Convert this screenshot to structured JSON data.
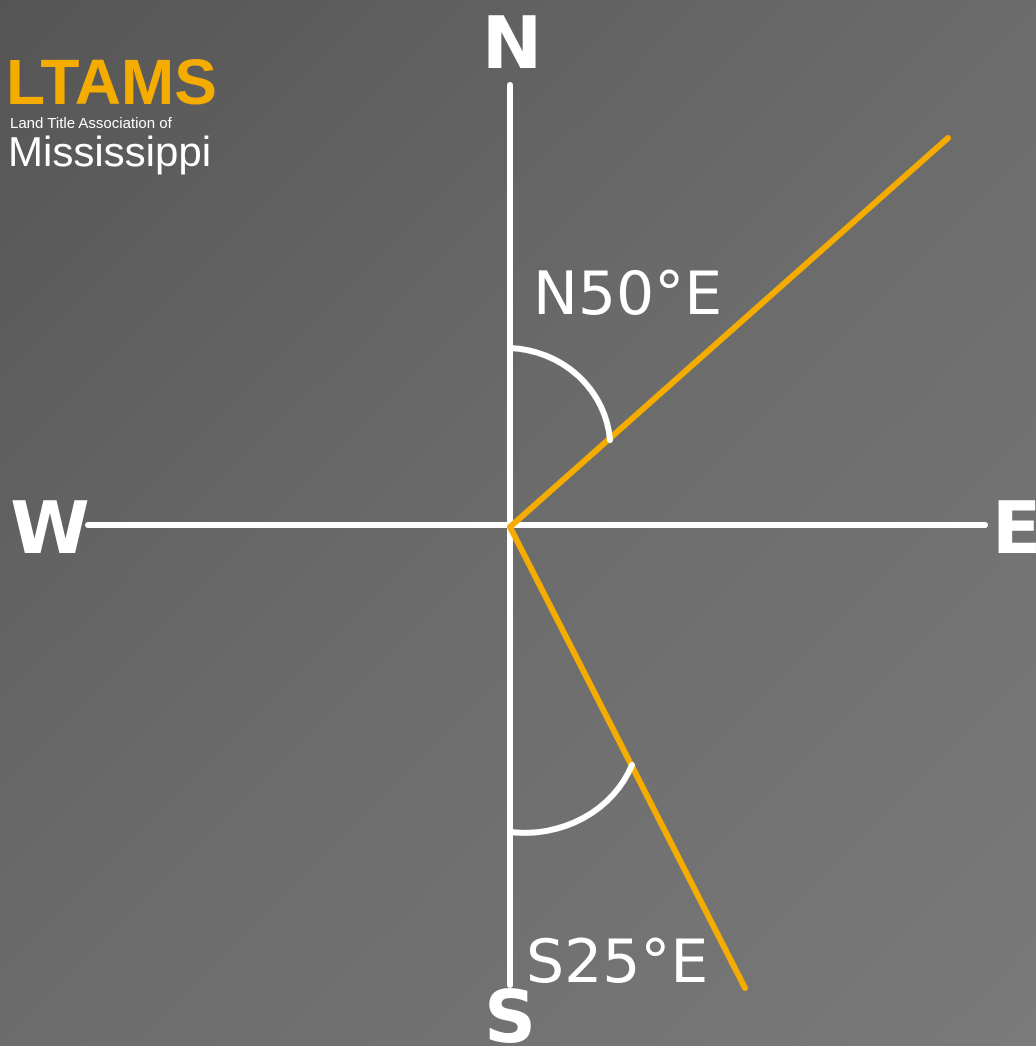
{
  "logo": {
    "acronym": "LTAMS",
    "line1": "Land Title Association of",
    "line2": "Mississippi"
  },
  "compass": {
    "north": "N",
    "south": "S",
    "east": "E",
    "west": "W"
  },
  "bearings": [
    {
      "label": "N50°E"
    },
    {
      "label": "S25°E"
    }
  ]
}
